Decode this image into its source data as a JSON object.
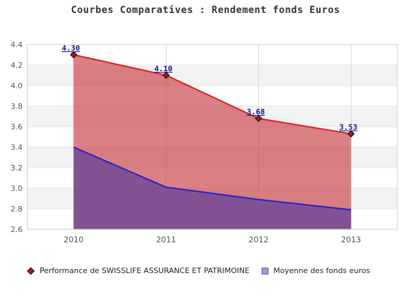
{
  "title": "Courbes Comparatives : Rendement fonds Euros",
  "chart_data": {
    "type": "area",
    "x": [
      "2010",
      "2011",
      "2012",
      "2013"
    ],
    "series": [
      {
        "name": "Performance de SWISSLIFE ASSURANCE ET PATRIMOINE",
        "values": [
          4.3,
          4.1,
          3.68,
          3.53
        ],
        "point_labels": [
          "4.30",
          "4.10",
          "3.68",
          "3.53"
        ],
        "marker": "diamond",
        "estimated": false
      },
      {
        "name": "Moyenne des fonds euros",
        "values": [
          3.4,
          3.01,
          2.89,
          2.79
        ],
        "point_labels": [],
        "marker": "square",
        "estimated": true
      }
    ],
    "ylim": [
      2.6,
      4.4
    ],
    "ytick_step": 0.2,
    "yticks": [
      "4.4",
      "4.2",
      "4.0",
      "3.8",
      "3.6",
      "3.4",
      "3.2",
      "3.0",
      "2.8",
      "2.6"
    ],
    "xticks": [
      "2010",
      "2011",
      "2012",
      "2013"
    ],
    "grid": true,
    "legend_position": "bottom"
  },
  "colors": {
    "title": "#333333",
    "axis_labels": "#555555",
    "plot_border": "#cccccc",
    "band_base": "#ffffff",
    "band_alt": "#f3f3f3",
    "v_gridline": "#d6d6d6",
    "h_gridline": "#e6e6e6",
    "series1_line": "#e41a1c",
    "series1_fill": "rgba(200,60,66,0.65)",
    "series1_marker_fill": "#b01818",
    "series1_marker_stroke": "#1a1a1a",
    "series1_label": "#17177f",
    "series2_line": "#2020cf",
    "series2_fill": "rgba(107,70,153,0.8)",
    "legend_square_fill": "#9999cc",
    "legend_square_border": "#5f5f9e",
    "legend_text": "#222222"
  }
}
